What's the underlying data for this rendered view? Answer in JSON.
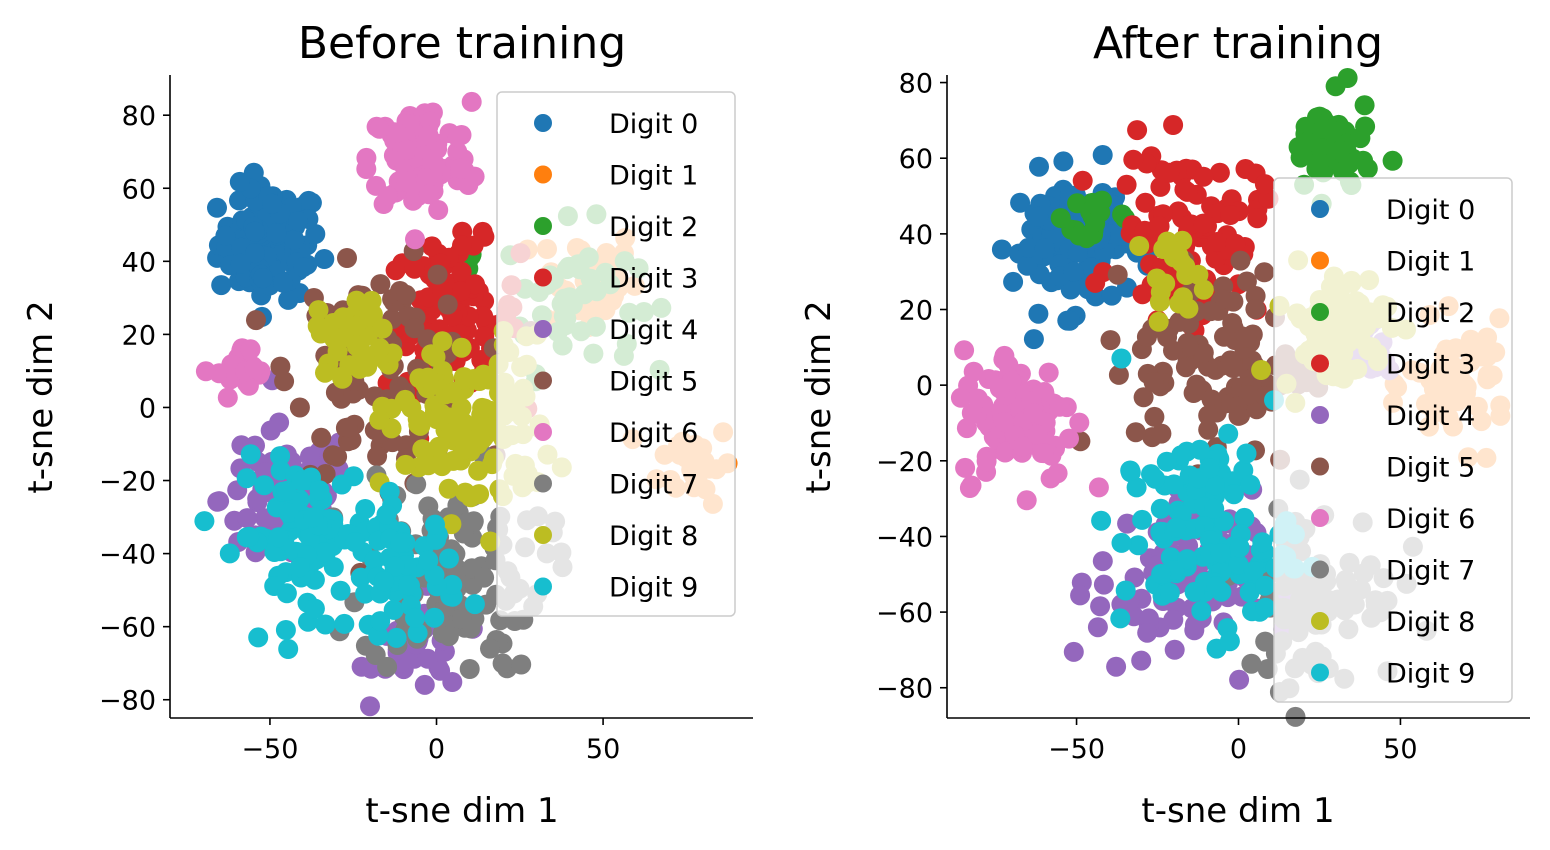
{
  "chart_data": [
    {
      "type": "scatter",
      "title": "Before training",
      "xlabel": "t-sne dim 1",
      "ylabel": "t-sne dim 2",
      "xlim": [
        -80,
        95
      ],
      "ylim": [
        -85,
        91
      ],
      "xticks": [
        -50,
        0,
        50
      ],
      "xtick_labels": [
        "−50",
        "0",
        "50"
      ],
      "yticks": [
        -80,
        -60,
        -40,
        -20,
        0,
        20,
        40,
        60,
        80
      ],
      "ytick_labels": [
        "−80",
        "−60",
        "−40",
        "−20",
        "0",
        "20",
        "40",
        "60",
        "80"
      ],
      "grid": false,
      "legend_position": "top-right",
      "series": [
        {
          "name": "Digit 0",
          "color": "#1f77b4",
          "clusters": [
            {
              "cx": -50,
              "cy": 45,
              "r": 14,
              "n": 110
            }
          ]
        },
        {
          "name": "Digit 1",
          "color": "#ff7f0e",
          "clusters": [
            {
              "cx": 45,
              "cy": 35,
              "r": 14,
              "n": 40
            },
            {
              "cx": 78,
              "cy": -15,
              "r": 10,
              "n": 30
            }
          ]
        },
        {
          "name": "Digit 2",
          "color": "#2ca02c",
          "clusters": [
            {
              "cx": 40,
              "cy": 30,
              "r": 18,
              "n": 45
            },
            {
              "cx": 10,
              "cy": 40,
              "r": 4,
              "n": 6
            }
          ]
        },
        {
          "name": "Digit 3",
          "color": "#d62728",
          "clusters": [
            {
              "cx": 5,
              "cy": 25,
              "r": 18,
              "n": 100
            }
          ]
        },
        {
          "name": "Digit 4",
          "color": "#9467bd",
          "clusters": [
            {
              "cx": -45,
              "cy": -25,
              "r": 18,
              "n": 80
            },
            {
              "cx": -5,
              "cy": -65,
              "r": 12,
              "n": 45
            }
          ]
        },
        {
          "name": "Digit 5",
          "color": "#8c564b",
          "clusters": [
            {
              "cx": -15,
              "cy": 10,
              "r": 25,
              "n": 110
            }
          ]
        },
        {
          "name": "Digit 6",
          "color": "#e377c2",
          "clusters": [
            {
              "cx": -5,
              "cy": 68,
              "r": 14,
              "n": 100
            },
            {
              "cx": -58,
              "cy": 9,
              "r": 7,
              "n": 22
            }
          ]
        },
        {
          "name": "Digit 7",
          "color": "#7f7f7f",
          "clusters": [
            {
              "cx": 5,
              "cy": -45,
              "r": 25,
              "n": 110
            }
          ]
        },
        {
          "name": "Digit 8",
          "color": "#bcbd22",
          "clusters": [
            {
              "cx": 10,
              "cy": -5,
              "r": 22,
              "n": 130
            },
            {
              "cx": -25,
              "cy": 20,
              "r": 10,
              "n": 40
            }
          ]
        },
        {
          "name": "Digit 9",
          "color": "#17becf",
          "clusters": [
            {
              "cx": -40,
              "cy": -35,
              "r": 18,
              "n": 90
            },
            {
              "cx": -10,
              "cy": -45,
              "r": 15,
              "n": 60
            }
          ]
        }
      ]
    },
    {
      "type": "scatter",
      "title": "After training",
      "xlabel": "t-sne dim 1",
      "ylabel": "t-sne dim 2",
      "xlim": [
        -90,
        90
      ],
      "ylim": [
        -88,
        82
      ],
      "xticks": [
        -50,
        0,
        50
      ],
      "xtick_labels": [
        "−50",
        "0",
        "50"
      ],
      "yticks": [
        -80,
        -60,
        -40,
        -20,
        0,
        20,
        40,
        60,
        80
      ],
      "ytick_labels": [
        "−80",
        "−60",
        "−40",
        "−20",
        "0",
        "20",
        "40",
        "60",
        "80"
      ],
      "grid": false,
      "legend_position": "right",
      "series": [
        {
          "name": "Digit 0",
          "color": "#1f77b4",
          "clusters": [
            {
              "cx": -52,
              "cy": 38,
              "r": 16,
              "n": 110
            }
          ]
        },
        {
          "name": "Digit 1",
          "color": "#ff7f0e",
          "clusters": [
            {
              "cx": 68,
              "cy": 0,
              "r": 14,
              "n": 60
            }
          ]
        },
        {
          "name": "Digit 2",
          "color": "#2ca02c",
          "clusters": [
            {
              "cx": 28,
              "cy": 62,
              "r": 12,
              "n": 60
            },
            {
              "cx": -45,
              "cy": 45,
              "r": 8,
              "n": 18
            }
          ]
        },
        {
          "name": "Digit 3",
          "color": "#d62728",
          "clusters": [
            {
              "cx": -15,
              "cy": 40,
              "r": 20,
              "n": 110
            }
          ]
        },
        {
          "name": "Digit 4",
          "color": "#9467bd",
          "clusters": [
            {
              "cx": -20,
              "cy": -52,
              "r": 22,
              "n": 90
            },
            {
              "cx": 40,
              "cy": 10,
              "r": 8,
              "n": 20
            }
          ]
        },
        {
          "name": "Digit 5",
          "color": "#8c564b",
          "clusters": [
            {
              "cx": -5,
              "cy": 5,
              "r": 24,
              "n": 110
            }
          ]
        },
        {
          "name": "Digit 6",
          "color": "#e377c2",
          "clusters": [
            {
              "cx": -68,
              "cy": -8,
              "r": 16,
              "n": 110
            }
          ]
        },
        {
          "name": "Digit 7",
          "color": "#7f7f7f",
          "clusters": [
            {
              "cx": 25,
              "cy": -55,
              "r": 22,
              "n": 90
            }
          ]
        },
        {
          "name": "Digit 8",
          "color": "#bcbd22",
          "clusters": [
            {
              "cx": 30,
              "cy": 15,
              "r": 15,
              "n": 80
            },
            {
              "cx": -20,
              "cy": 30,
              "r": 8,
              "n": 20
            }
          ]
        },
        {
          "name": "Digit 9",
          "color": "#17becf",
          "clusters": [
            {
              "cx": -10,
              "cy": -40,
              "r": 24,
              "n": 120
            }
          ]
        }
      ]
    }
  ]
}
